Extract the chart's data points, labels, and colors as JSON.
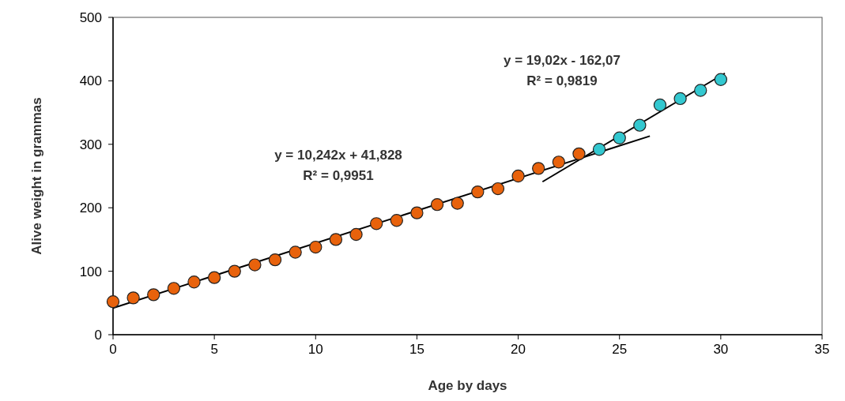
{
  "chart_data": {
    "type": "scatter",
    "xlabel": "Age by days",
    "ylabel": "Alive weight in grammas",
    "xlim": [
      0,
      35
    ],
    "ylim": [
      0,
      500
    ],
    "xticks": [
      0,
      5,
      10,
      15,
      20,
      25,
      30,
      35
    ],
    "yticks": [
      0,
      100,
      200,
      300,
      400,
      500
    ],
    "grid": false,
    "marker": "circle",
    "series": [
      {
        "type": "line",
        "marker": "none",
        "color": "#000000",
        "x": [
          0,
          26.5
        ],
        "values": [
          42,
          313
        ]
      },
      {
        "type": "line",
        "marker": "none",
        "color": "#000000",
        "x": [
          21.2,
          30.2
        ],
        "values": [
          241,
          412
        ]
      },
      {
        "color": "#e8620c",
        "x": [
          0,
          1,
          2,
          3,
          4,
          5,
          6,
          7,
          8,
          9,
          10,
          11,
          12,
          13,
          14,
          15,
          16,
          17,
          18,
          19,
          20,
          21,
          22,
          23
        ],
        "values": [
          52,
          58,
          63,
          73,
          83,
          90,
          100,
          110,
          118,
          130,
          138,
          150,
          158,
          175,
          180,
          192,
          205,
          207,
          225,
          230,
          250,
          262,
          272,
          285
        ]
      },
      {
        "color": "#33c8d0",
        "x": [
          24,
          25,
          26,
          27,
          28,
          29,
          30
        ],
        "values": [
          292,
          310,
          330,
          362,
          372,
          385,
          402
        ]
      }
    ],
    "annotations": [
      "y = 10,242x + 41,828",
      "R² = 0,9951",
      "y = 19,02x - 162,07",
      "R² = 0,9819"
    ]
  }
}
